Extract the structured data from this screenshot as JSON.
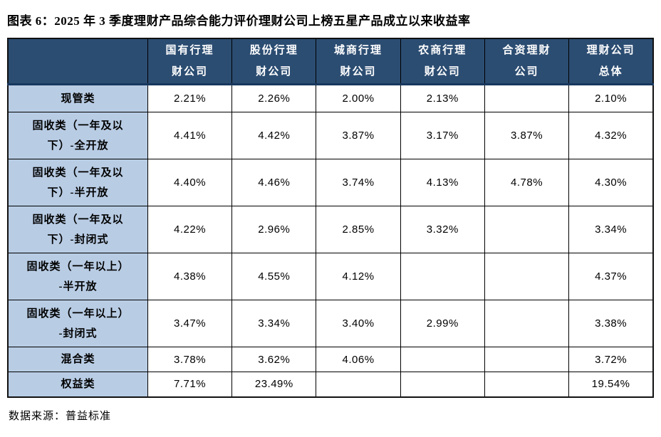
{
  "title": "图表 6：2025 年 3 季度理财产品综合能力评价理财公司上榜五星产品成立以来收益率",
  "source": "数据来源：普益标准",
  "colors": {
    "header_bg": "#2C4D72",
    "header_text": "#FFFFFF",
    "label_bg": "#B8CCE4",
    "grid_border": "#000000",
    "thick_border": "#17375E"
  },
  "table": {
    "corner_label": "",
    "columns": [
      "国有行理\n财公司",
      "股份行理\n财公司",
      "城商行理\n财公司",
      "农商行理\n财公司",
      "合资理财\n公司",
      "理财公司\n总体"
    ],
    "rows": [
      {
        "label": "现管类",
        "values": [
          "2.21%",
          "2.26%",
          "2.00%",
          "2.13%",
          "",
          "2.10%"
        ]
      },
      {
        "label": "固收类（一年及以\n下）-全开放",
        "values": [
          "4.41%",
          "4.42%",
          "3.87%",
          "3.17%",
          "3.87%",
          "4.32%"
        ]
      },
      {
        "label": "固收类（一年及以\n下）-半开放",
        "values": [
          "4.40%",
          "4.46%",
          "3.74%",
          "4.13%",
          "4.78%",
          "4.30%"
        ]
      },
      {
        "label": "固收类（一年及以\n下）-封闭式",
        "values": [
          "4.22%",
          "2.96%",
          "2.85%",
          "3.32%",
          "",
          "3.34%"
        ]
      },
      {
        "label": "固收类（一年以上）\n-半开放",
        "values": [
          "4.38%",
          "4.55%",
          "4.12%",
          "",
          "",
          "4.37%"
        ]
      },
      {
        "label": "固收类（一年以上）\n-封闭式",
        "values": [
          "3.47%",
          "3.34%",
          "3.40%",
          "2.99%",
          "",
          "3.38%"
        ]
      },
      {
        "label": "混合类",
        "values": [
          "3.78%",
          "3.62%",
          "4.06%",
          "",
          "",
          "3.72%"
        ]
      },
      {
        "label": "权益类",
        "values": [
          "7.71%",
          "23.49%",
          "",
          "",
          "",
          "19.54%"
        ]
      }
    ]
  },
  "chart_data": {
    "type": "table",
    "title": "2025 年 3 季度理财产品综合能力评价理财公司上榜五星产品成立以来收益率",
    "columns": [
      "国有行理财公司",
      "股份行理财公司",
      "城商行理财公司",
      "农商行理财公司",
      "合资理财公司",
      "理财公司总体"
    ],
    "row_categories": [
      "现管类",
      "固收类（一年及以下）-全开放",
      "固收类（一年及以下）-半开放",
      "固收类（一年及以下）-封闭式",
      "固收类（一年以上）-半开放",
      "固收类（一年以上）-封闭式",
      "混合类",
      "权益类"
    ],
    "values_percent": [
      [
        2.21,
        2.26,
        2.0,
        2.13,
        null,
        2.1
      ],
      [
        4.41,
        4.42,
        3.87,
        3.17,
        3.87,
        4.32
      ],
      [
        4.4,
        4.46,
        3.74,
        4.13,
        4.78,
        4.3
      ],
      [
        4.22,
        2.96,
        2.85,
        3.32,
        null,
        3.34
      ],
      [
        4.38,
        4.55,
        4.12,
        null,
        null,
        4.37
      ],
      [
        3.47,
        3.34,
        3.4,
        2.99,
        null,
        3.38
      ],
      [
        3.78,
        3.62,
        4.06,
        null,
        null,
        3.72
      ],
      [
        7.71,
        23.49,
        null,
        null,
        null,
        19.54
      ]
    ]
  }
}
